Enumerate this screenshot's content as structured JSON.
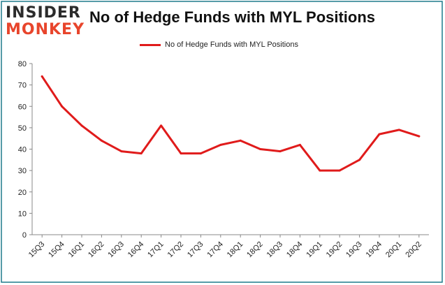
{
  "brand": {
    "line1": "INSIDER",
    "line2": "MONKEY"
  },
  "colors": {
    "series": "#e01b1b",
    "brand_dark": "#2b2b2b",
    "brand_accent": "#e8452c",
    "frame": "#1e7a8c"
  },
  "chart_data": {
    "type": "line",
    "title": "No of Hedge Funds with MYL Positions",
    "xlabel": "",
    "ylabel": "",
    "ylim": [
      0,
      80
    ],
    "yticks": [
      0,
      10,
      20,
      30,
      40,
      50,
      60,
      70,
      80
    ],
    "grid": false,
    "legend": "top-center",
    "categories": [
      "15Q3",
      "15Q4",
      "16Q1",
      "16Q2",
      "16Q3",
      "16Q4",
      "17Q1",
      "17Q2",
      "17Q3",
      "17Q4",
      "18Q1",
      "18Q2",
      "18Q3",
      "18Q4",
      "19Q1",
      "19Q2",
      "19Q3",
      "19Q4",
      "20Q1",
      "20Q2"
    ],
    "series": [
      {
        "name": "No of Hedge Funds with MYL Positions",
        "values": [
          74,
          60,
          51,
          44,
          39,
          38,
          51,
          38,
          38,
          42,
          44,
          40,
          39,
          42,
          30,
          30,
          35,
          47,
          49,
          46
        ]
      }
    ]
  }
}
